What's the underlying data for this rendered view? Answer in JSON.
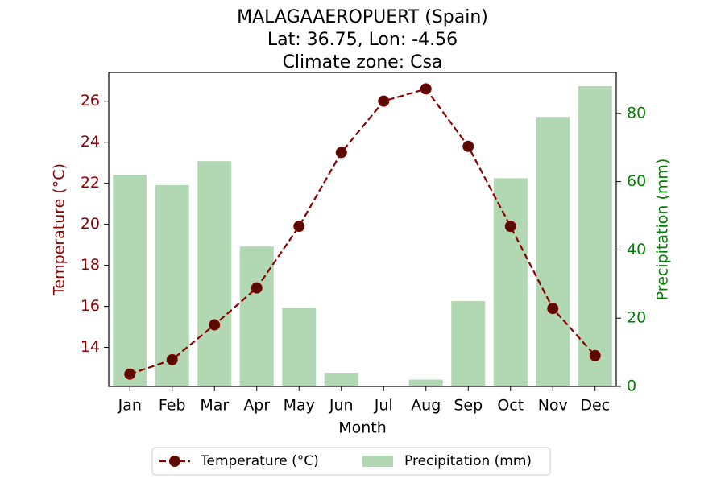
{
  "chart_data": {
    "type": "bar+line",
    "title_lines": [
      "MALAGAAEROPUERT (Spain)",
      "Lat: 36.75, Lon: -4.56",
      "Climate zone: Csa"
    ],
    "categories": [
      "Jan",
      "Feb",
      "Mar",
      "Apr",
      "May",
      "Jun",
      "Jul",
      "Aug",
      "Sep",
      "Oct",
      "Nov",
      "Dec"
    ],
    "xlabel": "Month",
    "ylabel_left": "Temperature (°C)",
    "ylabel_right": "Precipitation (mm)",
    "ylim_left": [
      12.1,
      27.4
    ],
    "ylim_right": [
      0,
      92
    ],
    "yticks_left": [
      14,
      16,
      18,
      20,
      22,
      24,
      26
    ],
    "yticks_right": [
      0,
      20,
      40,
      60,
      80
    ],
    "series": [
      {
        "name": "Temperature (°C)",
        "axis": "left",
        "kind": "line",
        "values": [
          12.7,
          13.4,
          15.1,
          16.9,
          19.9,
          23.5,
          26.0,
          26.6,
          23.8,
          19.9,
          15.9,
          13.6
        ]
      },
      {
        "name": "Precipitation (mm)",
        "axis": "right",
        "kind": "bar",
        "values": [
          62,
          59,
          66,
          41,
          23,
          4,
          0,
          2,
          25,
          61,
          79,
          88
        ]
      }
    ],
    "legend_position": "bottom-center",
    "colors": {
      "temperature": "#8b0000",
      "precipitation": "#b2d8b3",
      "right_axis": "#008000"
    }
  }
}
